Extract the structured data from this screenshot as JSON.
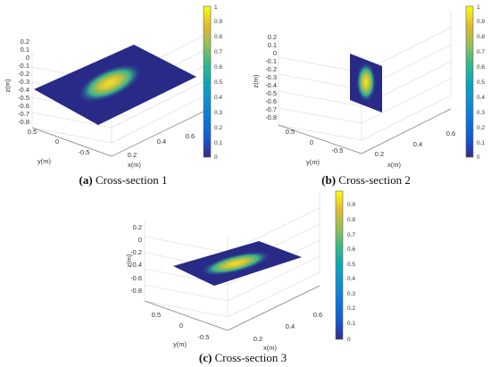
{
  "chart_data": [
    {
      "type": "surface3d",
      "caption_tag": "(a)",
      "caption_text": "Cross-section 1",
      "plane": "tilted",
      "xlabel": "x(m)",
      "ylabel": "y(m)",
      "zlabel": "z(m)",
      "z_ticks": [
        "0.2",
        "0.1",
        "0",
        "-0.1",
        "-0.2",
        "-0.3",
        "-0.4",
        "-0.5",
        "-0.6",
        "-0.7",
        "-0.8"
      ],
      "y_ticks": [
        "0.5",
        "0",
        "-0.5"
      ],
      "x_ticks": [
        "0.2",
        "0.4",
        "0.6"
      ],
      "colorbar": {
        "min": 0,
        "max": 1,
        "ticks": [
          "1",
          "0.9",
          "0.8",
          "0.7",
          "0.6",
          "0.5",
          "0.4",
          "0.3",
          "0.2",
          "0.1",
          "0"
        ]
      }
    },
    {
      "type": "surface3d",
      "caption_tag": "(b)",
      "caption_text": "Cross-section 2",
      "plane": "vertical",
      "xlabel": "x(m)",
      "ylabel": "y(m)",
      "zlabel": "z(m)",
      "z_ticks": [
        "0.2",
        "0.1",
        "0",
        "-0.1",
        "-0.2",
        "-0.3",
        "-0.4",
        "-0.5",
        "-0.6",
        "-0.7",
        "-0.8"
      ],
      "y_ticks": [
        "0.5",
        "0",
        "-0.5"
      ],
      "x_ticks": [
        "0.2",
        "0.4",
        "0.6"
      ],
      "colorbar": {
        "min": 0,
        "max": 1,
        "ticks": [
          "1",
          "0.9",
          "0.8",
          "0.7",
          "0.6",
          "0.5",
          "0.4",
          "0.3",
          "0.2",
          "0.1",
          "0"
        ]
      }
    },
    {
      "type": "surface3d",
      "caption_tag": "(c)",
      "caption_text": "Cross-section 3",
      "plane": "horizontal",
      "xlabel": "x(m)",
      "ylabel": "y(m)",
      "zlabel": "z(m)",
      "z_ticks": [
        "0.2",
        "0",
        "-0.2",
        "-0.4",
        "-0.6",
        "-0.8"
      ],
      "y_ticks": [
        "0.5",
        "0",
        "-0.5"
      ],
      "x_ticks": [
        "0.2",
        "0.4",
        "0.6"
      ],
      "colorbar": {
        "min": 0,
        "max": 0.9,
        "ticks": [
          "0.9",
          "0.8",
          "0.7",
          "0.6",
          "0.5",
          "0.4",
          "0.3",
          "0.2",
          "0.1",
          "0"
        ]
      }
    }
  ]
}
